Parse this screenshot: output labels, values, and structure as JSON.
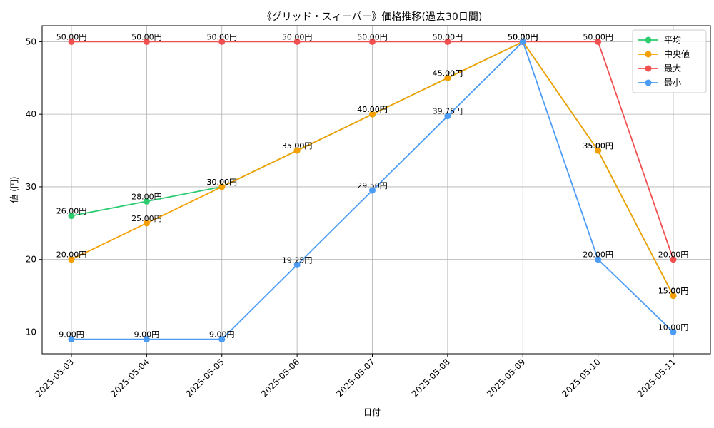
{
  "chart_data": {
    "type": "line",
    "title": "《グリッド・スィーパー》価格推移(過去30日間)",
    "xlabel": "日付",
    "ylabel": "値 (円)",
    "ylim": [
      7,
      52.2
    ],
    "yticks": [
      10,
      20,
      30,
      40,
      50
    ],
    "grid": true,
    "legend_position": "top-right",
    "label_suffix": "円",
    "categories": [
      "2025-05-03",
      "2025-05-04",
      "2025-05-05",
      "2025-05-06",
      "2025-05-07",
      "2025-05-08",
      "2025-05-09",
      "2025-05-10",
      "2025-05-11"
    ],
    "series": [
      {
        "name": "平均",
        "color": "#2ecc71",
        "values": [
          26,
          28,
          30,
          35,
          40,
          45,
          50,
          35,
          15
        ]
      },
      {
        "name": "中央値",
        "color": "#f5a000",
        "values": [
          20,
          25,
          30,
          35,
          40,
          45,
          50,
          35,
          15
        ]
      },
      {
        "name": "最大",
        "color": "#f05050",
        "values": [
          50,
          50,
          50,
          50,
          50,
          50,
          50,
          50,
          20
        ]
      },
      {
        "name": "最小",
        "color": "#4c9cf5",
        "values": [
          9,
          9,
          9,
          19.25,
          29.5,
          39.75,
          50,
          20,
          10
        ]
      }
    ]
  }
}
